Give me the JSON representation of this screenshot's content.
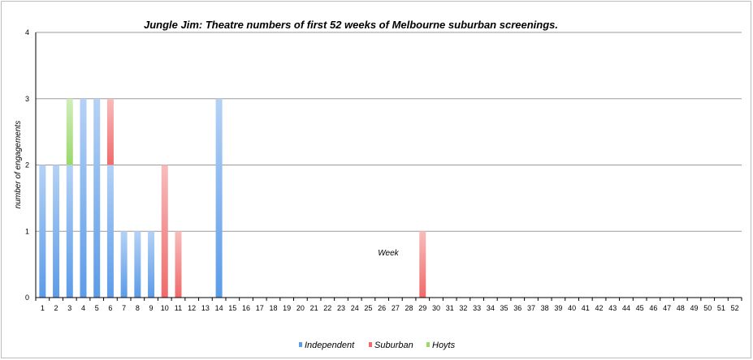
{
  "chart_data": {
    "type": "bar",
    "stacked": true,
    "title": "Jungle Jim: Theatre numbers of first 52 weeks of Melbourne suburban screenings.",
    "xlabel": "Week",
    "ylabel": "number of engagements",
    "ylim": [
      0,
      4
    ],
    "yticks": [
      "0",
      "1",
      "2",
      "3",
      "4"
    ],
    "grid": true,
    "legend_position": "bottom",
    "categories": [
      "1",
      "2",
      "3",
      "4",
      "5",
      "6",
      "7",
      "8",
      "9",
      "10",
      "11",
      "12",
      "13",
      "14",
      "15",
      "16",
      "17",
      "18",
      "19",
      "20",
      "21",
      "22",
      "23",
      "24",
      "25",
      "26",
      "27",
      "28",
      "29",
      "30",
      "31",
      "32",
      "33",
      "34",
      "35",
      "36",
      "37",
      "38",
      "39",
      "40",
      "41",
      "42",
      "43",
      "44",
      "45",
      "46",
      "47",
      "48",
      "49",
      "50",
      "51",
      "52"
    ],
    "series": [
      {
        "name": "Independent",
        "color": "#5b9be8",
        "values": [
          2,
          2,
          2,
          3,
          3,
          2,
          1,
          1,
          1,
          0,
          0,
          0,
          0,
          3,
          0,
          0,
          0,
          0,
          0,
          0,
          0,
          0,
          0,
          0,
          0,
          0,
          0,
          0,
          0,
          0,
          0,
          0,
          0,
          0,
          0,
          0,
          0,
          0,
          0,
          0,
          0,
          0,
          0,
          0,
          0,
          0,
          0,
          0,
          0,
          0,
          0,
          0
        ]
      },
      {
        "name": "Suburban",
        "color": "#f06a6a",
        "values": [
          0,
          0,
          0,
          0,
          0,
          1,
          0,
          0,
          0,
          2,
          1,
          0,
          0,
          0,
          0,
          0,
          0,
          0,
          0,
          0,
          0,
          0,
          0,
          0,
          0,
          0,
          0,
          0,
          1,
          0,
          0,
          0,
          0,
          0,
          0,
          0,
          0,
          0,
          0,
          0,
          0,
          0,
          0,
          0,
          0,
          0,
          0,
          0,
          0,
          0,
          0,
          0
        ]
      },
      {
        "name": "Hoyts",
        "color": "#9ad86a",
        "values": [
          0,
          0,
          1,
          0,
          0,
          0,
          0,
          0,
          0,
          0,
          0,
          0,
          0,
          0,
          0,
          0,
          0,
          0,
          0,
          0,
          0,
          0,
          0,
          0,
          0,
          0,
          0,
          0,
          0,
          0,
          0,
          0,
          0,
          0,
          0,
          0,
          0,
          0,
          0,
          0,
          0,
          0,
          0,
          0,
          0,
          0,
          0,
          0,
          0,
          0,
          0,
          0
        ]
      }
    ]
  }
}
